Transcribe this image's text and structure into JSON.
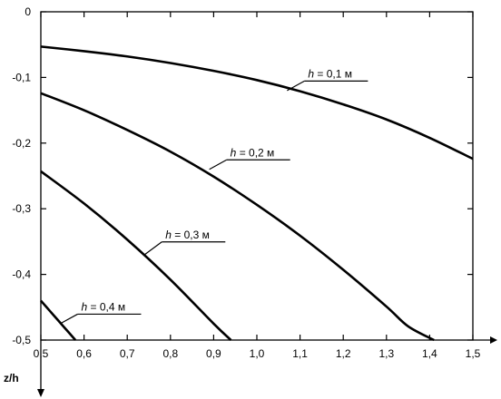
{
  "chart_data": {
    "type": "line",
    "xlabel": "z/h",
    "xlim": [
      0.5,
      1.5
    ],
    "ylim": [
      -0.5,
      0
    ],
    "xticks": [
      "0,5",
      "0,6",
      "0,7",
      "0,8",
      "0,9",
      "1,0",
      "1,1",
      "1,2",
      "1,3",
      "1,4",
      "1,5"
    ],
    "yticks": [
      "0",
      "-0,1",
      "-0,2",
      "-0,3",
      "-0,4",
      "-0,5"
    ],
    "grid": false,
    "series": [
      {
        "name": "h = 0,1 м",
        "x": [
          0.5,
          0.6,
          0.7,
          0.8,
          0.9,
          1.0,
          1.1,
          1.2,
          1.3,
          1.4,
          1.5
        ],
        "y": [
          -0.053,
          -0.06,
          -0.068,
          -0.078,
          -0.09,
          -0.104,
          -0.121,
          -0.141,
          -0.164,
          -0.192,
          -0.224
        ]
      },
      {
        "name": "h = 0,2 м",
        "x": [
          0.5,
          0.6,
          0.7,
          0.8,
          0.9,
          1.0,
          1.1,
          1.2,
          1.3,
          1.35,
          1.41
        ],
        "y": [
          -0.124,
          -0.15,
          -0.18,
          -0.213,
          -0.251,
          -0.294,
          -0.341,
          -0.393,
          -0.449,
          -0.479,
          -0.5
        ]
      },
      {
        "name": "h = 0,3 м",
        "x": [
          0.5,
          0.6,
          0.7,
          0.8,
          0.9,
          0.94
        ],
        "y": [
          -0.243,
          -0.292,
          -0.347,
          -0.408,
          -0.475,
          -0.5
        ]
      },
      {
        "name": "h = 0,4 м",
        "x": [
          0.5,
          0.52,
          0.54,
          0.56,
          0.58
        ],
        "y": [
          -0.44,
          -0.455,
          -0.47,
          -0.485,
          -0.5
        ]
      }
    ],
    "annotations": [
      {
        "series": 0,
        "text_italic": "h",
        "text_rest": " = 0,1 м",
        "at_x": 1.07,
        "at_y": -0.12,
        "label_x": 1.11,
        "label_y": -0.1
      },
      {
        "series": 1,
        "text_italic": "h",
        "text_rest": " = 0,2 м",
        "at_x": 0.89,
        "at_y": -0.24,
        "label_x": 0.93,
        "label_y": -0.22
      },
      {
        "series": 2,
        "text_italic": "h",
        "text_rest": " = 0,3 м",
        "at_x": 0.74,
        "at_y": -0.37,
        "label_x": 0.78,
        "label_y": -0.345
      },
      {
        "series": 3,
        "text_italic": "h",
        "text_rest": " = 0,4 м",
        "at_x": 0.545,
        "at_y": -0.475,
        "label_x": 0.585,
        "label_y": -0.455
      }
    ]
  }
}
